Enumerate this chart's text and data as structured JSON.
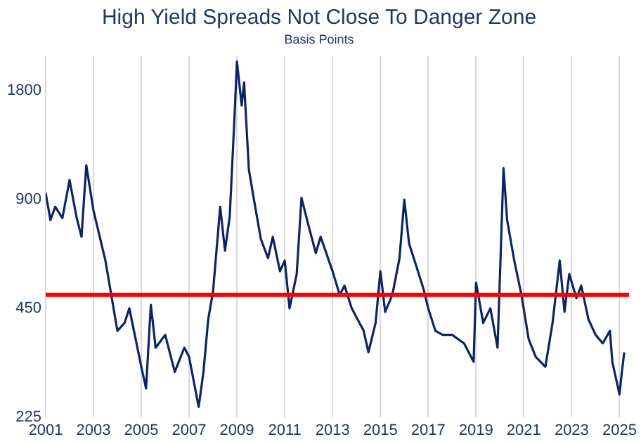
{
  "chart_data": {
    "type": "line",
    "title": "High Yield Spreads Not Close To Danger Zone",
    "subtitle": "Basis Points",
    "x": [
      2001.0,
      2001.2,
      2001.4,
      2001.7,
      2002.0,
      2002.3,
      2002.5,
      2002.7,
      2003.0,
      2003.5,
      2004.0,
      2004.3,
      2004.5,
      2005.0,
      2005.2,
      2005.4,
      2005.6,
      2006.0,
      2006.4,
      2006.8,
      2007.0,
      2007.4,
      2007.6,
      2007.8,
      2008.0,
      2008.3,
      2008.5,
      2008.7,
      2008.9,
      2009.0,
      2009.2,
      2009.3,
      2009.5,
      2009.7,
      2010.0,
      2010.3,
      2010.5,
      2010.8,
      2011.0,
      2011.2,
      2011.5,
      2011.7,
      2012.0,
      2012.3,
      2012.5,
      2013.0,
      2013.3,
      2013.5,
      2013.8,
      2014.3,
      2014.5,
      2014.8,
      2015.0,
      2015.2,
      2015.5,
      2015.8,
      2016.0,
      2016.2,
      2016.5,
      2016.8,
      2017.0,
      2017.3,
      2017.6,
      2018.0,
      2018.5,
      2018.9,
      2019.0,
      2019.3,
      2019.6,
      2019.9,
      2020.15,
      2020.3,
      2020.6,
      2020.9,
      2021.2,
      2021.5,
      2021.9,
      2022.2,
      2022.5,
      2022.7,
      2022.9,
      2023.2,
      2023.4,
      2023.7,
      2024.0,
      2024.3,
      2024.6,
      2024.7,
      2025.0,
      2025.1,
      2025.2
    ],
    "series": [
      {
        "color": "#0d2463",
        "values": [
          940,
          790,
          860,
          800,
          1020,
          800,
          710,
          1120,
          840,
          610,
          390,
          410,
          450,
          310,
          270,
          460,
          350,
          380,
          300,
          350,
          330,
          240,
          300,
          420,
          500,
          860,
          650,
          810,
          1530,
          2170,
          1640,
          1900,
          1090,
          910,
          700,
          620,
          710,
          570,
          610,
          450,
          560,
          910,
          760,
          640,
          710,
          570,
          490,
          520,
          450,
          390,
          340,
          410,
          570,
          440,
          490,
          620,
          900,
          680,
          590,
          510,
          450,
          390,
          380,
          380,
          360,
          320,
          530,
          410,
          450,
          350,
          1100,
          790,
          610,
          490,
          370,
          330,
          310,
          410,
          610,
          440,
          560,
          480,
          520,
          420,
          380,
          360,
          390,
          320,
          260,
          300,
          340
        ]
      }
    ],
    "log": "y",
    "xlim": [
      2001,
      2025.4
    ],
    "xticks": [
      2001,
      2003,
      2005,
      2007,
      2009,
      2011,
      2013,
      2015,
      2017,
      2019,
      2021,
      2023,
      2025
    ],
    "ylim": [
      225,
      2250
    ],
    "yticks": [
      225,
      450,
      900,
      1800
    ],
    "grid": "x",
    "ref_lines": [
      {
        "axis": "y",
        "value": 490,
        "color": "#ff0000"
      }
    ]
  }
}
